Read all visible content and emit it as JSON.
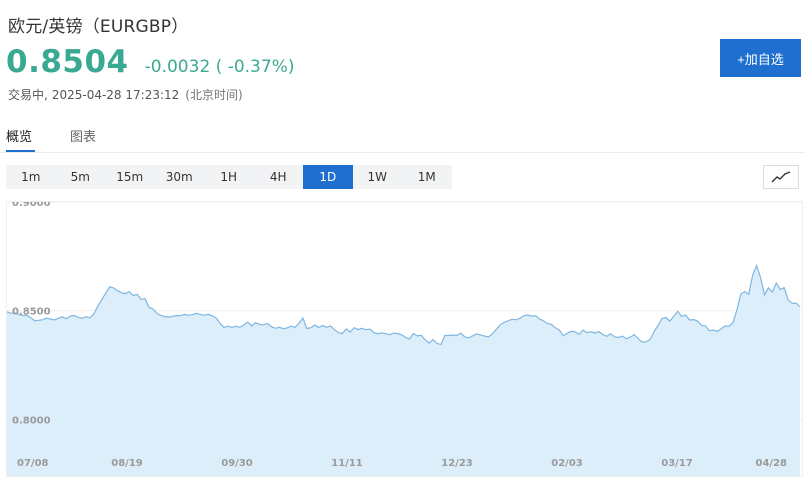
{
  "header": {
    "title": "欧元/英镑（EURGBP）",
    "price": "0.8504",
    "change": "-0.0032",
    "change_pct": "( -0.37%)",
    "status": "交易中,",
    "timestamp": "2025-04-28 17:23:12",
    "timezone": "(北京时间)",
    "price_color": "#3aa991"
  },
  "actions": {
    "add_watchlist": "+加自选"
  },
  "tabs": [
    {
      "label": "概览",
      "active": true
    },
    {
      "label": "图表",
      "active": false
    }
  ],
  "intervals": [
    "1m",
    "5m",
    "15m",
    "30m",
    "1H",
    "4H",
    "1D",
    "1W",
    "1M"
  ],
  "active_interval": "1D",
  "chart_type_icon": "line-chart-icon",
  "accent_color": "#1f6fd0",
  "chart_data": {
    "type": "area",
    "ylim": [
      0.785,
      0.9
    ],
    "yticks": [
      {
        "value": 0.9,
        "label": "0.9000"
      },
      {
        "value": 0.85,
        "label": "0.8500"
      },
      {
        "value": 0.8,
        "label": "0.8000"
      }
    ],
    "xticks": [
      "07/08",
      "08/19",
      "09/30",
      "11/11",
      "12/23",
      "02/03",
      "03/17",
      "04/28"
    ],
    "line_color": "#7fb6e0",
    "fill_color": "#ddeefb",
    "grid": true,
    "values": [
      0.8495,
      0.8488,
      0.849,
      0.8483,
      0.8478,
      0.8479,
      0.8468,
      0.8454,
      0.8456,
      0.8458,
      0.8465,
      0.8462,
      0.8457,
      0.8465,
      0.8472,
      0.8463,
      0.8475,
      0.8478,
      0.847,
      0.8465,
      0.8472,
      0.8468,
      0.8485,
      0.852,
      0.855,
      0.858,
      0.861,
      0.8605,
      0.8592,
      0.8583,
      0.8578,
      0.8588,
      0.857,
      0.8575,
      0.8552,
      0.8555,
      0.8515,
      0.8508,
      0.8488,
      0.8478,
      0.8473,
      0.8471,
      0.8474,
      0.8478,
      0.8477,
      0.8483,
      0.8479,
      0.8482,
      0.8488,
      0.8483,
      0.8479,
      0.8483,
      0.8477,
      0.8467,
      0.8442,
      0.8423,
      0.8429,
      0.8423,
      0.8429,
      0.8423,
      0.8434,
      0.8448,
      0.8429,
      0.8445,
      0.8437,
      0.8435,
      0.8441,
      0.8427,
      0.8419,
      0.8424,
      0.8417,
      0.8421,
      0.8429,
      0.8423,
      0.8443,
      0.8466,
      0.8418,
      0.8422,
      0.8434,
      0.8423,
      0.8432,
      0.8424,
      0.8429,
      0.8413,
      0.8399,
      0.8395,
      0.8416,
      0.8402,
      0.8422,
      0.8413,
      0.8419,
      0.8412,
      0.8416,
      0.8399,
      0.8394,
      0.8398,
      0.8394,
      0.8389,
      0.8397,
      0.8395,
      0.8389,
      0.8377,
      0.837,
      0.8395,
      0.8384,
      0.8387,
      0.8365,
      0.8351,
      0.8367,
      0.8349,
      0.8345,
      0.8386,
      0.8386,
      0.8388,
      0.8386,
      0.8397,
      0.838,
      0.8375,
      0.8384,
      0.8393,
      0.8389,
      0.8383,
      0.8379,
      0.8393,
      0.8414,
      0.8435,
      0.8446,
      0.8453,
      0.8461,
      0.8458,
      0.8465,
      0.8477,
      0.848,
      0.8475,
      0.8477,
      0.8462,
      0.8453,
      0.8441,
      0.8437,
      0.8421,
      0.8411,
      0.8385,
      0.8396,
      0.8405,
      0.8403,
      0.8391,
      0.8411,
      0.8399,
      0.8403,
      0.8397,
      0.8404,
      0.8391,
      0.8382,
      0.8394,
      0.838,
      0.8377,
      0.8383,
      0.8371,
      0.8379,
      0.8389,
      0.8372,
      0.8355,
      0.8357,
      0.8367,
      0.8403,
      0.8432,
      0.8463,
      0.8469,
      0.8452,
      0.8474,
      0.8497,
      0.8474,
      0.848,
      0.8457,
      0.8459,
      0.8453,
      0.8433,
      0.843,
      0.8408,
      0.8411,
      0.8405,
      0.8416,
      0.843,
      0.8428,
      0.8445,
      0.8503,
      0.8577,
      0.8588,
      0.8575,
      0.8664,
      0.8708,
      0.8653,
      0.8573,
      0.8605,
      0.8586,
      0.8627,
      0.8597,
      0.8606,
      0.8549,
      0.8534,
      0.8535,
      0.8519
    ]
  }
}
